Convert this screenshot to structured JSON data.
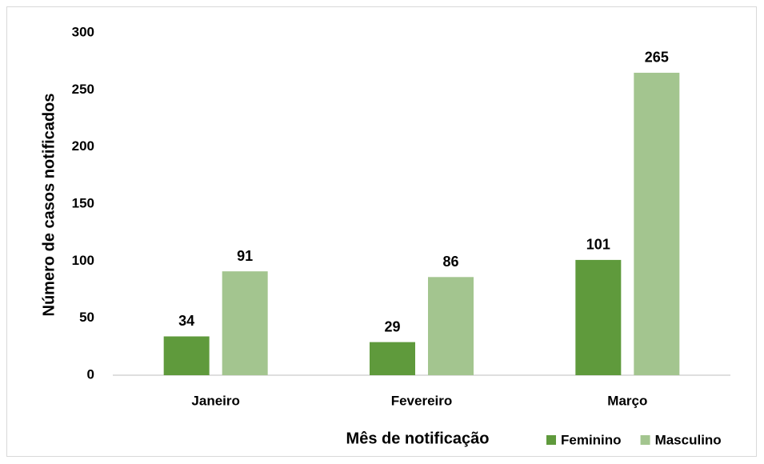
{
  "chart_data": {
    "type": "bar",
    "x_label": "Mês de notificação",
    "y_label": "Número de casos notificados",
    "categories": [
      "Janeiro",
      "Fevereiro",
      "Março"
    ],
    "series": [
      {
        "name": "Feminino",
        "color": "#5f9a3c",
        "values": [
          34,
          29,
          101
        ]
      },
      {
        "name": "Masculino",
        "color": "#a3c58f",
        "values": [
          91,
          86,
          265
        ]
      }
    ],
    "ylim": [
      0,
      300
    ],
    "yticks": [
      0,
      50,
      100,
      150,
      200,
      250,
      300
    ],
    "grid": false,
    "legend": "bottom-right"
  }
}
